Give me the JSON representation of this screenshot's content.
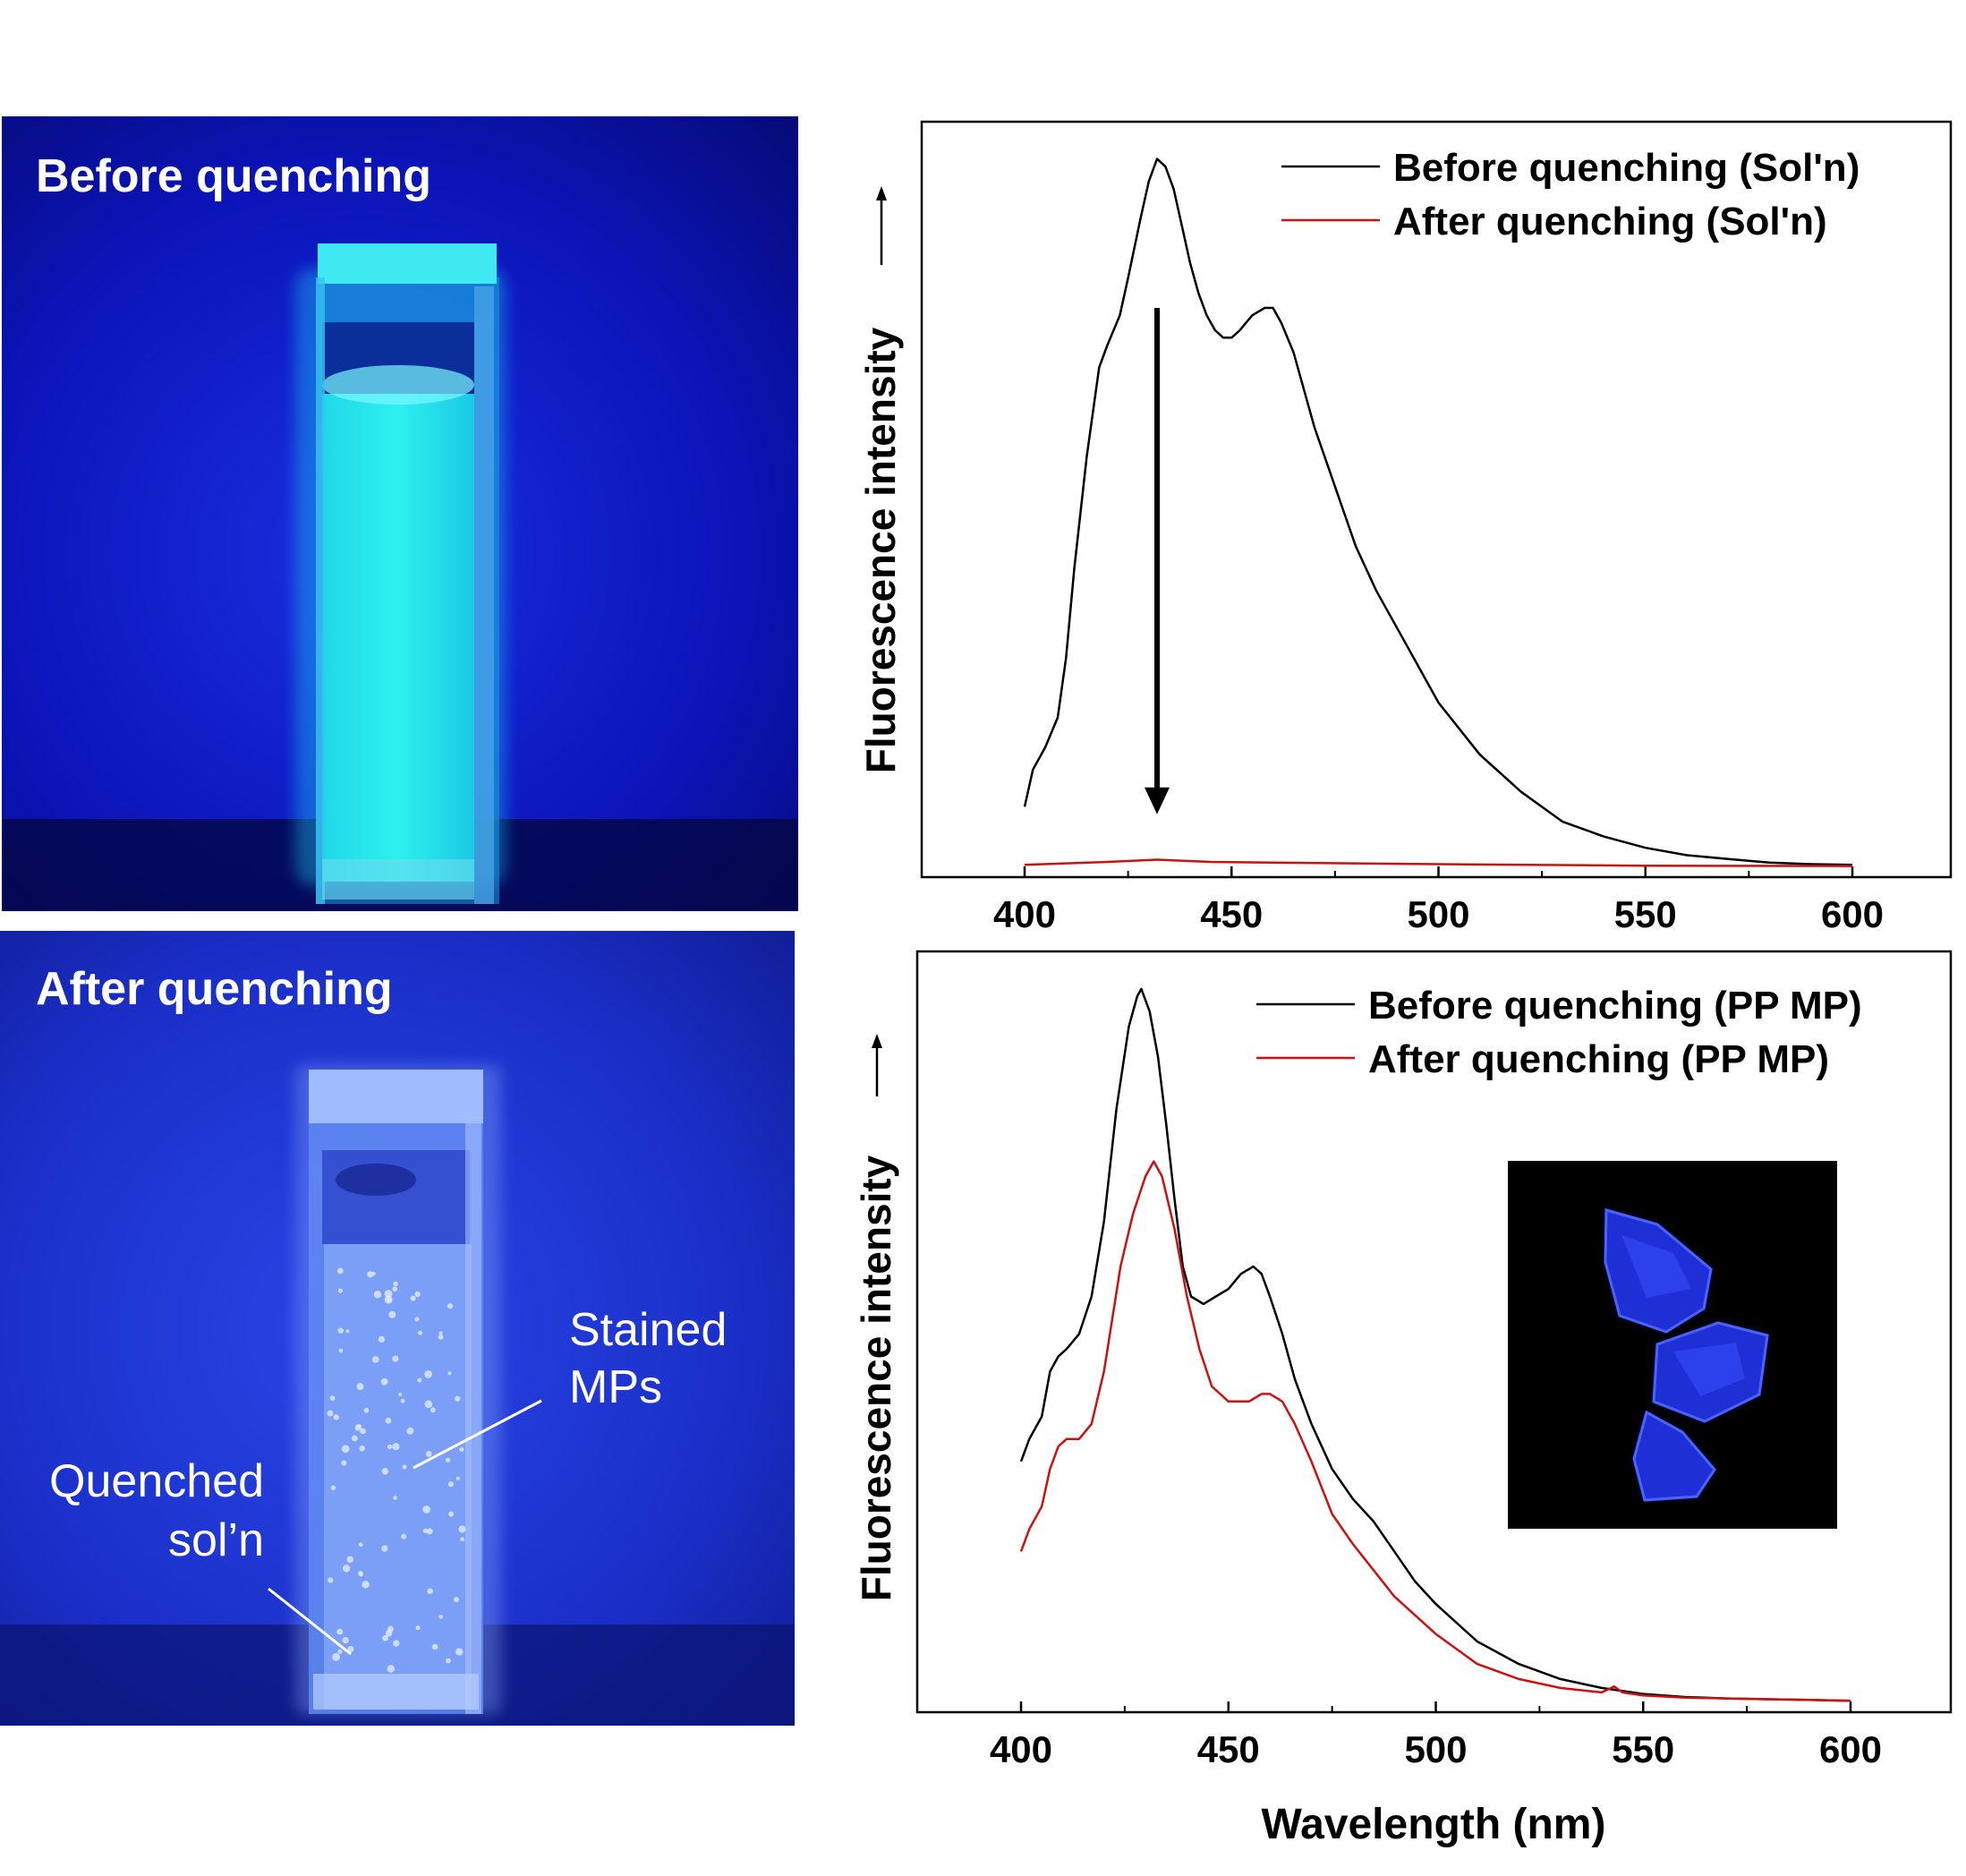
{
  "photos": {
    "top": {
      "label": "Before quenching"
    },
    "bottom": {
      "label": "After quenching",
      "annotation_mps": [
        "Stained",
        "MPs"
      ],
      "annotation_soln": [
        "Quenched",
        "sol’n"
      ]
    }
  },
  "colors": {
    "before": "#000000",
    "after": "#cc1111",
    "uv_bg": "#0a0fb0",
    "glow": "#22e6ea"
  },
  "chart_data": [
    {
      "type": "line",
      "xlabel": "",
      "ylabel": "Fluorescence intensity",
      "xlim": [
        375,
        625
      ],
      "ylim": [
        0,
        100
      ],
      "xticks": [
        400,
        450,
        500,
        550,
        600
      ],
      "arrow": {
        "x": 432,
        "from": 75,
        "to": 7
      },
      "legend_position": "top-right",
      "series": [
        {
          "name": "Before quenching (Sol'n)",
          "color": "#000000",
          "x": [
            400,
            402,
            405,
            408,
            410,
            412,
            415,
            418,
            420,
            423,
            425,
            428,
            430,
            432,
            434,
            436,
            438,
            440,
            442,
            444,
            446,
            448,
            450,
            452,
            455,
            458,
            460,
            462,
            465,
            468,
            470,
            475,
            480,
            485,
            490,
            495,
            500,
            510,
            520,
            530,
            540,
            550,
            560,
            570,
            580,
            590,
            600
          ],
          "y": [
            8,
            13,
            16,
            20,
            28,
            40,
            55,
            67,
            70,
            74,
            79,
            87,
            92,
            95,
            94,
            91,
            86,
            81,
            77,
            74,
            72,
            71,
            71,
            72,
            74,
            75,
            75,
            73,
            69,
            63,
            59,
            51,
            43,
            37,
            32,
            27,
            22,
            15,
            10,
            6,
            4,
            2.5,
            1.5,
            1,
            0.5,
            0.3,
            0.2
          ]
        },
        {
          "name": "After quenching (Sol'n)",
          "color": "#cc1111",
          "x": [
            400,
            420,
            432,
            445,
            460,
            500,
            550,
            600
          ],
          "y": [
            0.2,
            0.6,
            0.9,
            0.6,
            0.5,
            0.3,
            0.1,
            0.05
          ]
        }
      ]
    },
    {
      "type": "line",
      "xlabel": "Wavelength (nm)",
      "ylabel": "Fluorescence intensity",
      "xlim": [
        375,
        625
      ],
      "ylim": [
        0,
        100
      ],
      "xticks": [
        400,
        450,
        500,
        550,
        600
      ],
      "legend_position": "top-right",
      "series": [
        {
          "name": "Before quenching (PP MP)",
          "color": "#000000",
          "x": [
            400,
            402,
            405,
            407,
            409,
            411,
            414,
            417,
            420,
            423,
            426,
            428,
            429,
            431,
            433,
            435,
            437,
            439,
            441,
            444,
            447,
            450,
            453,
            456,
            458,
            460,
            463,
            466,
            470,
            475,
            480,
            485,
            490,
            495,
            500,
            510,
            520,
            530,
            540,
            550,
            560,
            570,
            580,
            590,
            600
          ],
          "y": [
            32,
            35,
            38,
            44,
            46,
            47,
            49,
            54,
            64,
            79,
            90,
            94,
            95,
            92,
            86,
            77,
            67,
            58,
            54,
            53,
            54,
            55,
            57,
            58,
            57,
            54,
            49,
            43,
            37,
            31,
            27,
            24,
            20,
            16,
            13,
            8,
            5,
            3,
            1.8,
            1,
            0.6,
            0.4,
            0.3,
            0.2,
            0.1
          ]
        },
        {
          "name": "After quenching (PP MP)",
          "color": "#cc1111",
          "x": [
            400,
            402,
            405,
            407,
            409,
            411,
            414,
            417,
            420,
            424,
            427,
            430,
            432,
            434,
            437,
            440,
            443,
            446,
            450,
            455,
            458,
            460,
            463,
            466,
            470,
            475,
            480,
            490,
            500,
            510,
            520,
            530,
            540,
            543,
            545,
            550,
            560,
            570,
            580,
            590,
            600
          ],
          "y": [
            20,
            23,
            26,
            31,
            34,
            35,
            35,
            37,
            44,
            58,
            65,
            70,
            72,
            70,
            63,
            54,
            47,
            42,
            40,
            40,
            41,
            41,
            40,
            37,
            32,
            25,
            21,
            14,
            9,
            5,
            3,
            1.8,
            1.2,
            2,
            1.2,
            0.8,
            0.5,
            0.4,
            0.3,
            0.2,
            0.1
          ]
        }
      ]
    }
  ]
}
